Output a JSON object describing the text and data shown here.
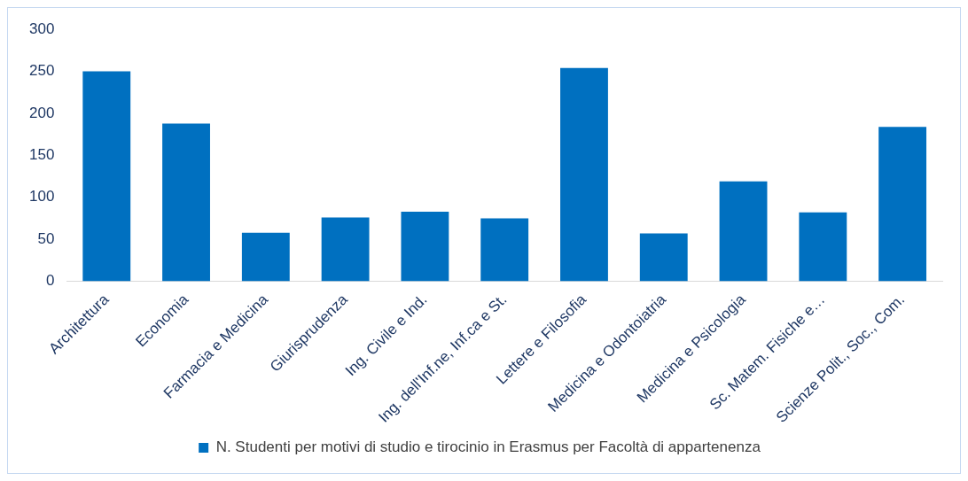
{
  "chart_data": {
    "type": "bar",
    "categories": [
      "Architettura",
      "Economia",
      "Farmacia e Medicina",
      "Giurisprudenza",
      "Ing. Civile e Ind.",
      "Ing. dell'Inf.ne, Inf.ca e St.",
      "Lettere e Filosofia",
      "Medicina e Odontoiatria",
      "Medicina e Psicologia",
      "Sc. Matem. Fisiche e…",
      "Scienze Polit., Soc., Com."
    ],
    "series": [
      {
        "name": "N. Studenti per motivi di studio e tirocinio in Erasmus per Facoltà di appartenenza",
        "color": "#0070c0",
        "values": [
          250,
          188,
          58,
          76,
          83,
          75,
          254,
          57,
          119,
          82,
          184
        ]
      }
    ],
    "ylim": [
      0,
      300
    ],
    "yticks": [
      0,
      50,
      100,
      150,
      200,
      250,
      300
    ],
    "grid": false,
    "legend": "bottom"
  }
}
